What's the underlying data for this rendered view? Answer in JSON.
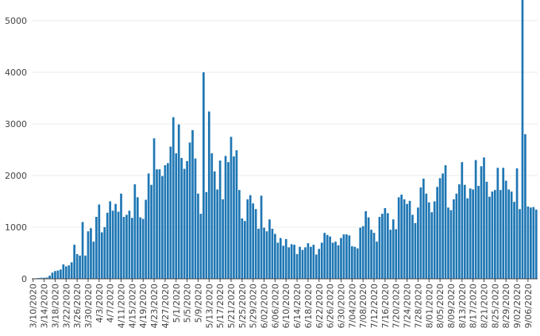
{
  "chart_data": {
    "type": "bar",
    "title": "",
    "xlabel": "",
    "ylabel": "",
    "x_start": "3/10/2020",
    "ylim": [
      0,
      5400
    ],
    "yticks": [
      0,
      1000,
      2000,
      3000,
      4000,
      5000
    ],
    "ytick_labels": [
      "0",
      "1000",
      "2000",
      "3000",
      "4000",
      "5000"
    ],
    "xtick_labels": [
      "3/10/2020",
      "3/14/2020",
      "3/18/2020",
      "3/22/2020",
      "3/26/2020",
      "3/30/2020",
      "4/3/2020",
      "4/7/2020",
      "4/11/2020",
      "4/15/2020",
      "4/19/2020",
      "4/23/2020",
      "4/27/2020",
      "5/1/2020",
      "5/5/2020",
      "5/9/2020",
      "5/13/2020",
      "5/17/2020",
      "5/21/2020",
      "5/25/2020",
      "5/29/2020",
      "6/02/2020",
      "6/06/2020",
      "6/10/2020",
      "6/14/2020",
      "6/18/2020",
      "6/22/2020",
      "6/26/2020",
      "6/30/2020",
      "7/04/2020",
      "7/08/2020",
      "7/12/2020",
      "7/16/2020",
      "7/20/2020",
      "7/24/2020",
      "7/28/2020",
      "8/01/2020",
      "8/05/2020",
      "8/09/2020",
      "8/13/2020",
      "8/17/2020",
      "8/21/2020",
      "8/25/2020",
      "8/29/2020",
      "9/02/2020",
      "9/06/2020"
    ],
    "grid": true,
    "legend": "none",
    "bar_color": "#1f77b4",
    "values": [
      5,
      10,
      15,
      20,
      20,
      25,
      60,
      120,
      150,
      160,
      180,
      280,
      240,
      260,
      320,
      660,
      480,
      450,
      1100,
      450,
      920,
      980,
      720,
      1200,
      1440,
      900,
      1000,
      1280,
      1500,
      1320,
      1450,
      1300,
      1650,
      1200,
      1240,
      1320,
      1180,
      1830,
      1580,
      1190,
      1160,
      1530,
      2040,
      1820,
      2720,
      2120,
      2120,
      1990,
      2200,
      2240,
      2560,
      3130,
      2430,
      2990,
      2340,
      2130,
      2280,
      2640,
      2880,
      2330,
      1650,
      1260,
      4000,
      1680,
      3240,
      2430,
      2080,
      1730,
      2290,
      1540,
      2380,
      2260,
      2750,
      2370,
      2490,
      1720,
      1170,
      1120,
      1540,
      1620,
      1460,
      1350,
      970,
      1610,
      990,
      920,
      1150,
      970,
      870,
      700,
      790,
      640,
      770,
      610,
      670,
      660,
      480,
      620,
      560,
      610,
      690,
      620,
      660,
      470,
      580,
      700,
      890,
      850,
      820,
      700,
      720,
      650,
      790,
      860,
      860,
      840,
      630,
      620,
      590,
      990,
      1020,
      1310,
      1190,
      950,
      890,
      720,
      1200,
      1260,
      1370,
      1270,
      950,
      1150,
      960,
      1580,
      1630,
      1540,
      1450,
      1510,
      1240,
      1080,
      1380,
      1770,
      1940,
      1650,
      1480,
      1290,
      1500,
      1780,
      1950,
      2040,
      2200,
      1380,
      1330,
      1540,
      1650,
      1830,
      2260,
      1820,
      1560,
      1750,
      1730,
      2300,
      1800,
      2180,
      2350,
      1880,
      1590,
      1690,
      1720,
      2150,
      1720,
      2150,
      1900,
      1730,
      1690,
      1490,
      2140,
      1350,
      5400,
      2800,
      1400,
      1380,
      1390,
      1340
    ]
  }
}
